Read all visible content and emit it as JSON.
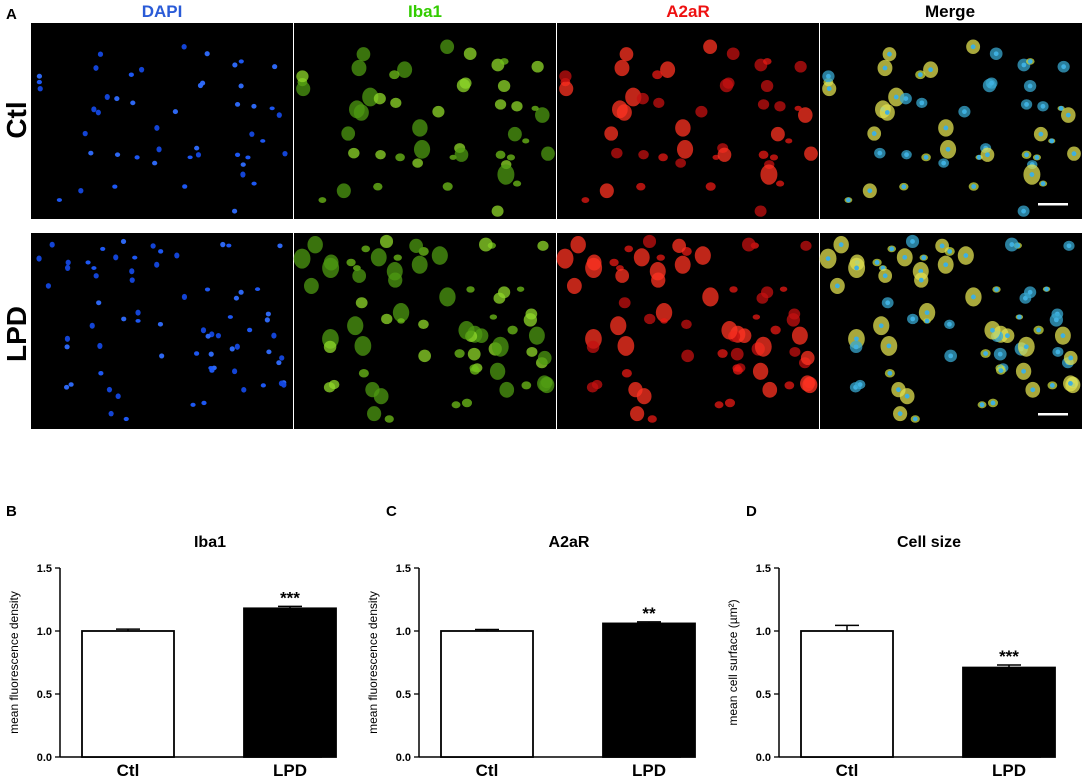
{
  "panel_labels": {
    "a": "A",
    "b": "B",
    "c": "C",
    "d": "D"
  },
  "micrograph": {
    "columns": [
      {
        "label": "DAPI",
        "color": "#2a5bd7"
      },
      {
        "label": "Iba1",
        "color": "#33cc00"
      },
      {
        "label": "A2aR",
        "color": "#ee1111"
      },
      {
        "label": "Merge",
        "color": "#000000"
      }
    ],
    "rows": [
      {
        "label": "Ctl"
      },
      {
        "label": "LPD"
      }
    ]
  },
  "chart_data": [
    {
      "type": "bar",
      "title": "Iba1",
      "ylabel": "mean fluorescence density",
      "categories": [
        "Ctl",
        "LPD"
      ],
      "values": [
        1.0,
        1.18
      ],
      "errors": [
        0.015,
        0.015
      ],
      "bar_colors": [
        "#ffffff",
        "#000000"
      ],
      "significance": [
        "",
        "***"
      ],
      "ylim": [
        0,
        1.5
      ],
      "yticks": [
        "0.0",
        "0.5",
        "1.0",
        "1.5"
      ]
    },
    {
      "type": "bar",
      "title": "A2aR",
      "ylabel": "mean fluorescence density",
      "categories": [
        "Ctl",
        "LPD"
      ],
      "values": [
        1.0,
        1.06
      ],
      "errors": [
        0.012,
        0.012
      ],
      "bar_colors": [
        "#ffffff",
        "#000000"
      ],
      "significance": [
        "",
        "**"
      ],
      "ylim": [
        0,
        1.5
      ],
      "yticks": [
        "0.0",
        "0.5",
        "1.0",
        "1.5"
      ]
    },
    {
      "type": "bar",
      "title": "Cell size",
      "ylabel": "mean cell surface (µm²)",
      "categories": [
        "Ctl",
        "LPD"
      ],
      "values": [
        1.0,
        0.71
      ],
      "errors": [
        0.045,
        0.02
      ],
      "bar_colors": [
        "#ffffff",
        "#000000"
      ],
      "significance": [
        "",
        "***"
      ],
      "ylim": [
        0,
        1.5
      ],
      "yticks": [
        "0.0",
        "0.5",
        "1.0",
        "1.5"
      ]
    }
  ]
}
